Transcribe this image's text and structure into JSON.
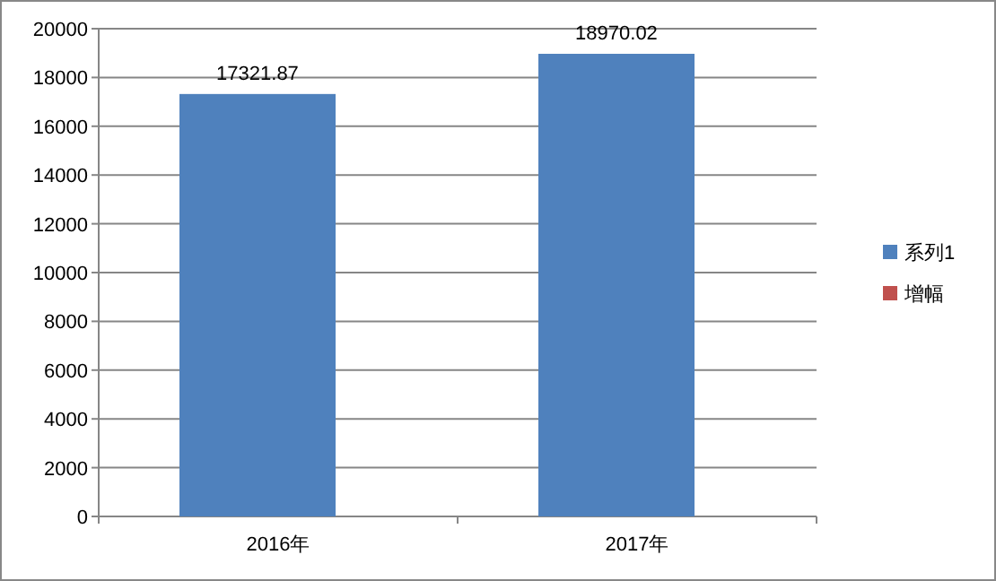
{
  "chart_data": {
    "type": "bar",
    "categories": [
      "2016年",
      "2017年"
    ],
    "series": [
      {
        "name": "系列1",
        "color": "#4f81bd",
        "values": [
          17321.87,
          18970.02
        ],
        "value_labels": [
          "17321.87",
          "18970.02"
        ]
      },
      {
        "name": "增幅",
        "color": "#c0504d",
        "values": [
          null,
          null
        ]
      }
    ],
    "ylim": [
      0,
      20000
    ],
    "yticks": [
      0,
      2000,
      4000,
      6000,
      8000,
      10000,
      12000,
      14000,
      16000,
      18000,
      20000
    ],
    "grid": "y",
    "legend": "right"
  }
}
